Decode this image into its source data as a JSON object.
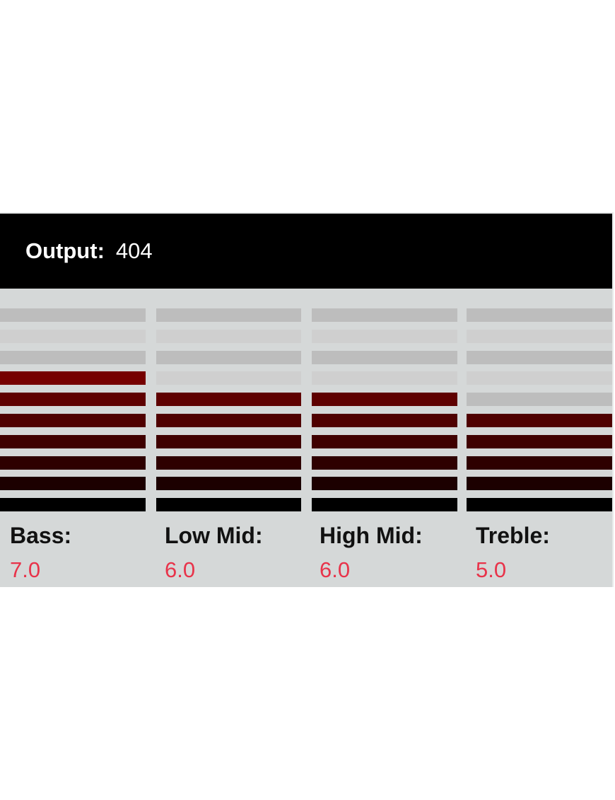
{
  "output": {
    "label": "Output:",
    "value": "404"
  },
  "meter": {
    "segments_total": 10,
    "colors": {
      "inactive_light": "#cfcfcf",
      "inactive_dark": "#bdbdbd",
      "active_levels": [
        "#000000",
        "#1c0000",
        "#2e0000",
        "#3f0000",
        "#4f0000",
        "#5e0000",
        "#760000",
        "#8e0000",
        "#a00000",
        "#b20000"
      ]
    }
  },
  "bands": [
    {
      "name": "Bass:",
      "value": "7.0",
      "level": 7
    },
    {
      "name": "Low Mid:",
      "value": "6.0",
      "level": 6
    },
    {
      "name": "High Mid:",
      "value": "6.0",
      "level": 6
    },
    {
      "name": "Treble:",
      "value": "5.0",
      "level": 5
    }
  ],
  "value_color": "#e8334a"
}
